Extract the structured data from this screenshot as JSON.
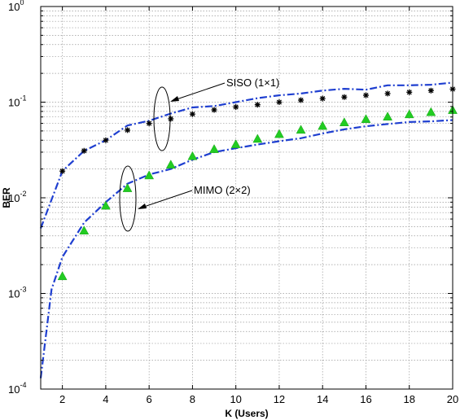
{
  "chart_data": {
    "type": "line",
    "title": "",
    "xlabel": "K (Users)",
    "ylabel": "BER",
    "xlim": [
      1,
      20
    ],
    "ylim": [
      0.0001,
      1
    ],
    "yscale": "log",
    "grid": true,
    "x_ticks": [
      "2",
      "4",
      "6",
      "8",
      "10",
      "12",
      "14",
      "16",
      "18",
      "20"
    ],
    "y_ticks": [
      {
        "base": "10",
        "exp": "-4",
        "value": 0.0001
      },
      {
        "base": "10",
        "exp": "-3",
        "value": 0.001
      },
      {
        "base": "10",
        "exp": "-2",
        "value": 0.01
      },
      {
        "base": "10",
        "exp": "-1",
        "value": 0.1
      },
      {
        "base": "10",
        "exp": "0",
        "value": 1
      }
    ],
    "series": [
      {
        "style": "dash-dot",
        "color": "#1f3fd0",
        "x": [
          1,
          2,
          3,
          4,
          5,
          6,
          7,
          8,
          9,
          10,
          11,
          12,
          13,
          14,
          15,
          16,
          17,
          18,
          19,
          20
        ],
        "values": [
          0.0048,
          0.019,
          0.031,
          0.04,
          0.057,
          0.064,
          0.076,
          0.088,
          0.091,
          0.1,
          0.11,
          0.118,
          0.123,
          0.132,
          0.138,
          0.135,
          0.15,
          0.15,
          0.152,
          0.16
        ]
      },
      {
        "style": "stars",
        "color": "#000000",
        "x": [
          2,
          3,
          4,
          5,
          6,
          7,
          8,
          9,
          10,
          11,
          12,
          13,
          14,
          15,
          16,
          17,
          18,
          19,
          20
        ],
        "values": [
          0.019,
          0.031,
          0.04,
          0.051,
          0.06,
          0.067,
          0.075,
          0.083,
          0.089,
          0.094,
          0.1,
          0.105,
          0.109,
          0.113,
          0.118,
          0.123,
          0.127,
          0.132,
          0.137
        ]
      },
      {
        "style": "dash-dot",
        "color": "#1f3fd0",
        "x": [
          1,
          1.5,
          2,
          3,
          4,
          5,
          6,
          7,
          8,
          9,
          10,
          11,
          12,
          13,
          14,
          15,
          16,
          17,
          18,
          19,
          20
        ],
        "values": [
          0.00013,
          0.0011,
          0.0024,
          0.0055,
          0.009,
          0.014,
          0.0175,
          0.02,
          0.025,
          0.03,
          0.033,
          0.036,
          0.039,
          0.042,
          0.047,
          0.052,
          0.056,
          0.059,
          0.062,
          0.063,
          0.065
        ]
      },
      {
        "style": "triangles",
        "color": "#22cc22",
        "x": [
          2,
          3,
          4,
          5,
          6,
          7,
          8,
          9,
          10,
          11,
          12,
          13,
          14,
          15,
          16,
          17,
          18,
          19,
          20
        ],
        "values": [
          0.0015,
          0.0045,
          0.0082,
          0.0125,
          0.017,
          0.022,
          0.027,
          0.032,
          0.036,
          0.041,
          0.046,
          0.051,
          0.056,
          0.061,
          0.066,
          0.07,
          0.074,
          0.078,
          0.082
        ]
      }
    ],
    "annotations": [
      {
        "text": "SISO (1×1)",
        "arrow_to": {
          "x": 7.0,
          "y": 0.07
        }
      },
      {
        "text": "MIMO (2×2)",
        "arrow_to": {
          "x": 5.6,
          "y": 0.0085
        }
      }
    ]
  }
}
